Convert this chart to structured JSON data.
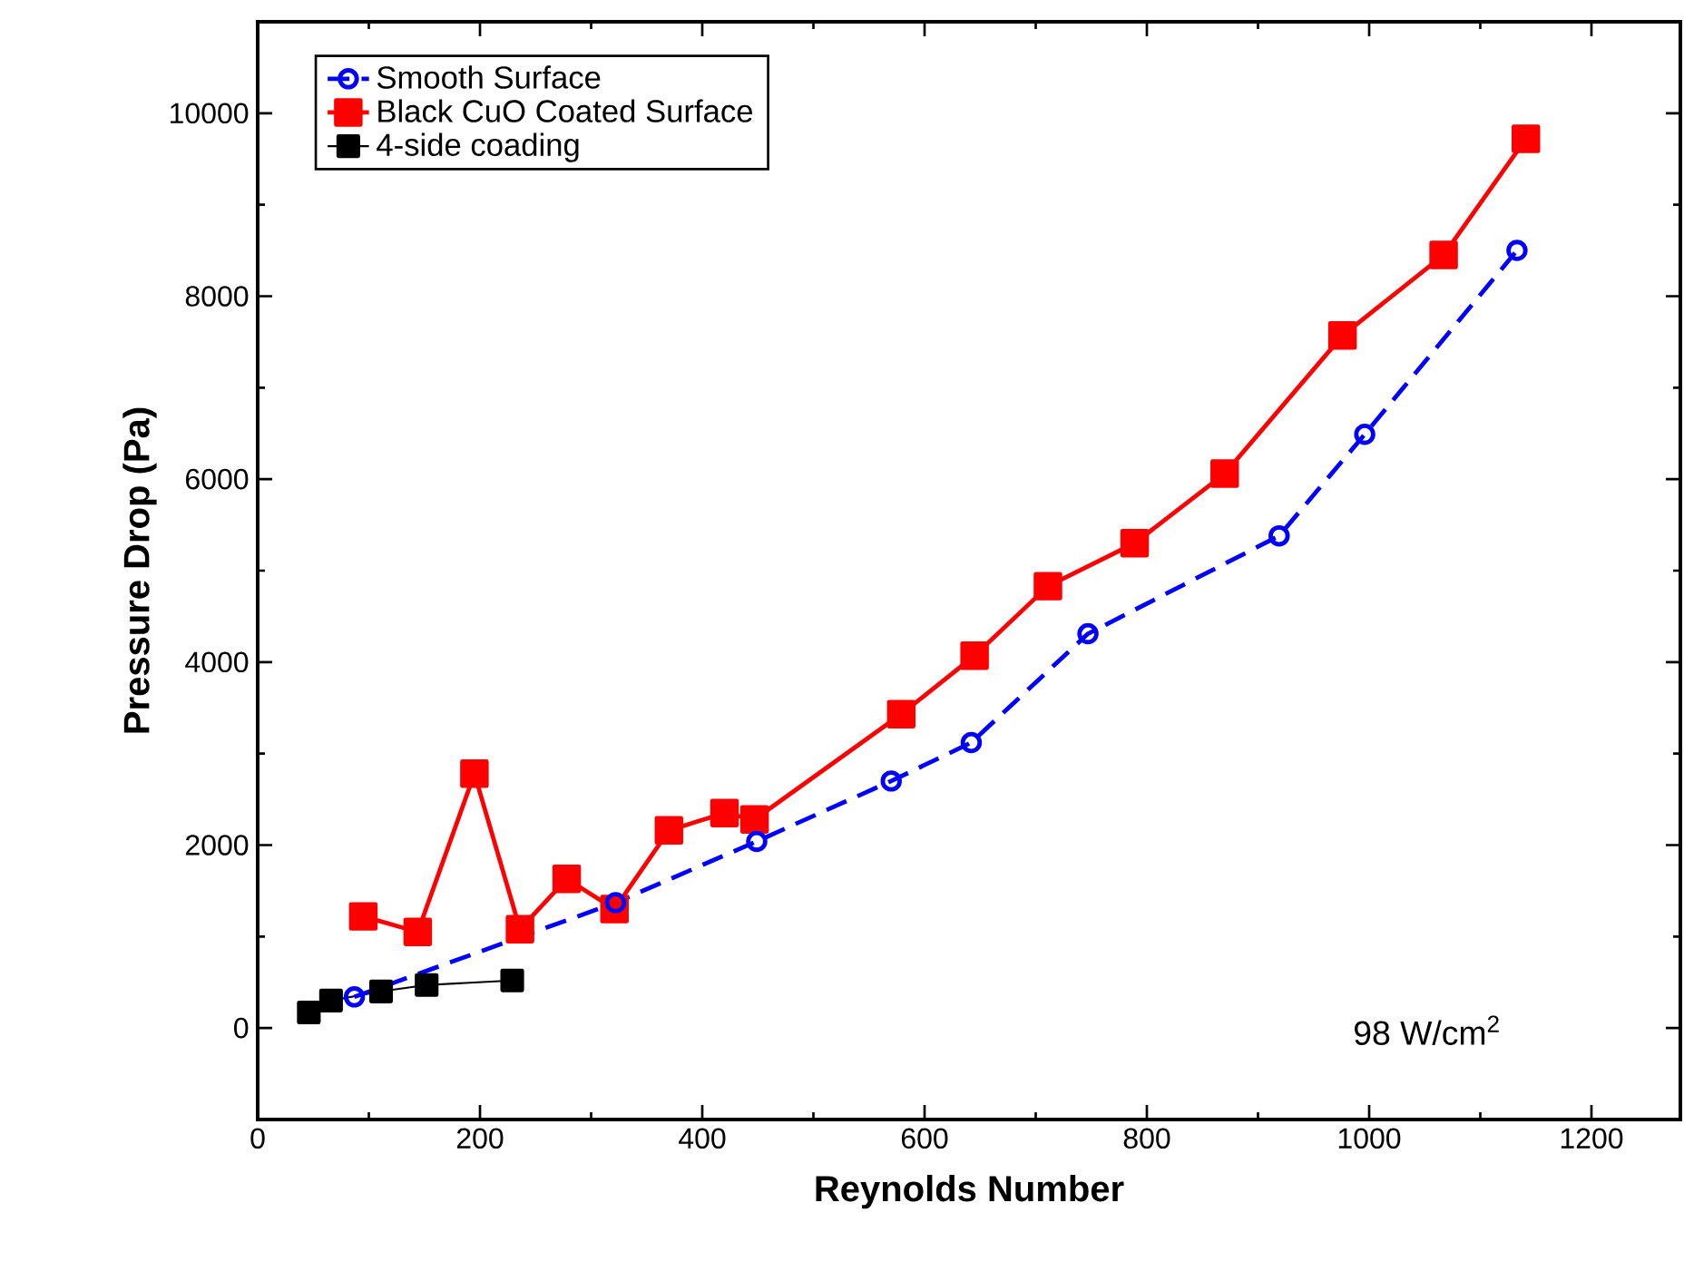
{
  "chart_data": {
    "type": "line",
    "xlabel": "Reynolds Number",
    "ylabel": "Pressure Drop (Pa)",
    "xlim": [
      0,
      1280
    ],
    "ylim": [
      -1000,
      11000
    ],
    "xticks": [
      0,
      200,
      400,
      600,
      800,
      1000,
      1200
    ],
    "yticks": [
      0,
      2000,
      4000,
      6000,
      8000,
      10000
    ],
    "grid": false,
    "legend": "top left",
    "annotations": [
      "98 W/cm$^{2}$"
    ],
    "series": [
      {
        "name": "Smooth Surface",
        "color": "#0000ff",
        "marker": "circle",
        "line_style": "dashed",
        "x": [
          87,
          322,
          449,
          570,
          642,
          747,
          919,
          996,
          1133
        ],
        "values": [
          340,
          1370,
          2040,
          2700,
          3120,
          4310,
          5380,
          6490,
          8500
        ]
      },
      {
        "name": "Black CuO Coated Surface",
        "color": "#ff0000",
        "marker": "square",
        "line_style": "solid",
        "x": [
          95,
          144,
          195,
          236,
          278,
          321,
          370,
          420,
          447,
          579,
          645,
          711,
          789,
          870,
          976,
          1067,
          1141
        ],
        "values": [
          1220,
          1050,
          2780,
          1080,
          1630,
          1300,
          2160,
          2350,
          2280,
          3430,
          4070,
          4830,
          5300,
          6060,
          7570,
          8450,
          9720
        ]
      },
      {
        "name": "4-side coading",
        "color": "#000000",
        "marker": "square",
        "line_style": "solid",
        "x": [
          46,
          66,
          111,
          152,
          229
        ],
        "values": [
          170,
          300,
          400,
          470,
          520
        ]
      }
    ]
  }
}
